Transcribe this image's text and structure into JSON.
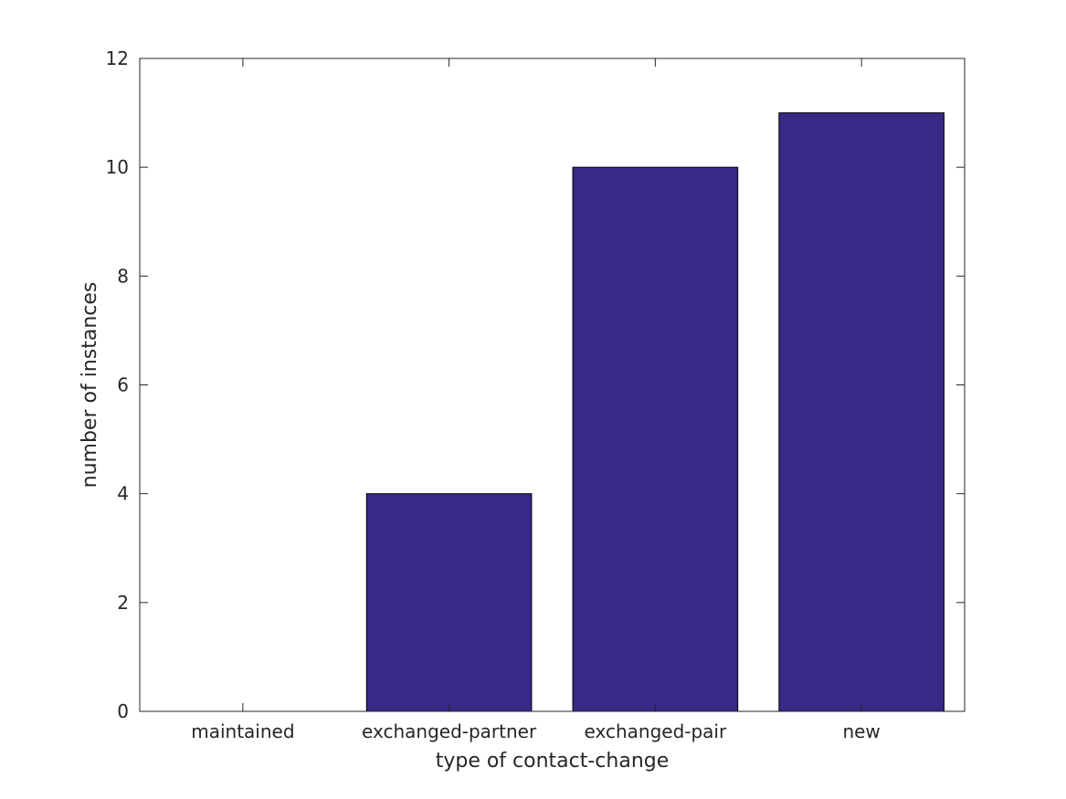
{
  "chart_data": {
    "type": "bar",
    "categories": [
      "maintained",
      "exchanged-partner",
      "exchanged-pair",
      "new"
    ],
    "values": [
      0,
      4,
      10,
      11
    ],
    "title": "",
    "xlabel": "type of contact-change",
    "ylabel": "number of instances",
    "ylim": [
      0,
      12
    ],
    "yticks": [
      "0",
      "2",
      "4",
      "6",
      "8",
      "10",
      "12"
    ],
    "grid": false,
    "bar_color": "#362a86",
    "axis_color": "#262626"
  }
}
